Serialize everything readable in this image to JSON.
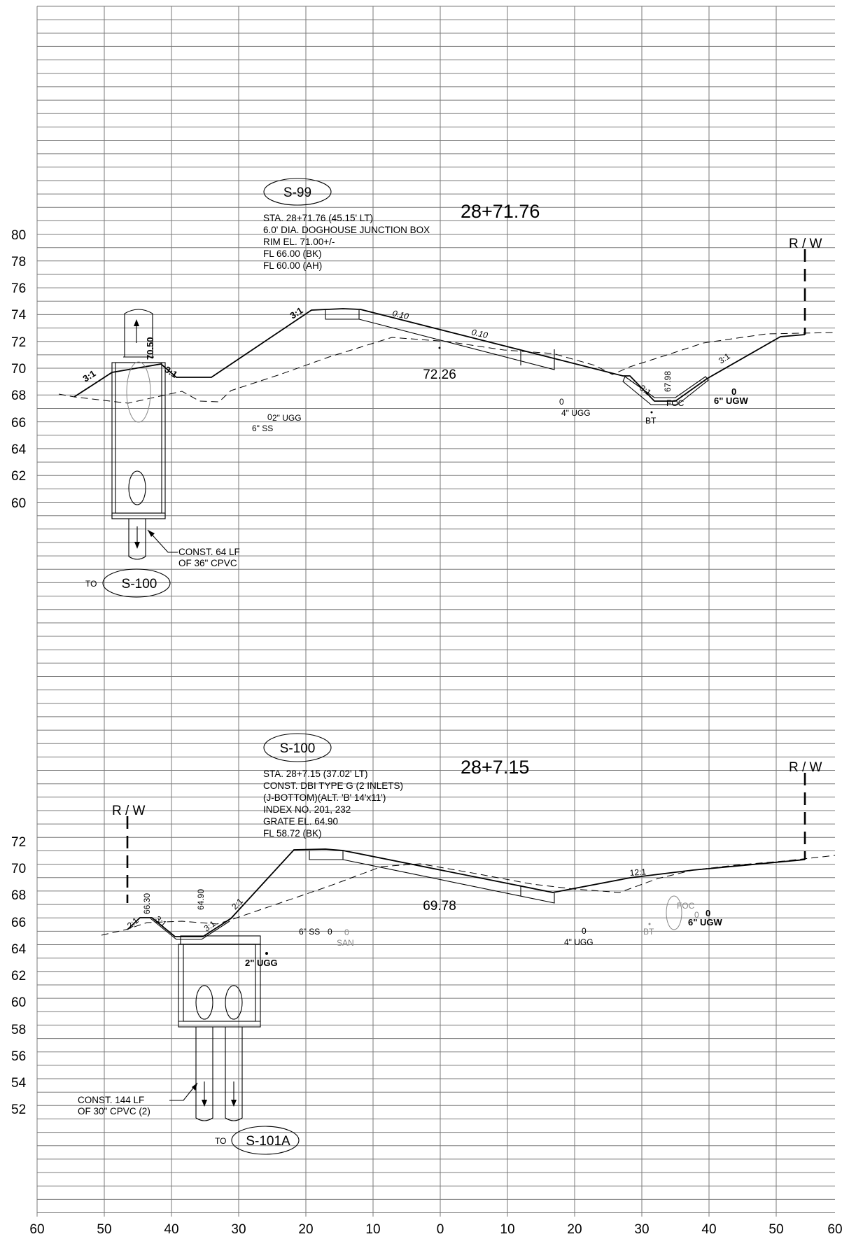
{
  "x_axis": {
    "labels": [
      "60",
      "50",
      "40",
      "30",
      "20",
      "10",
      "0",
      "10",
      "20",
      "30",
      "40",
      "50",
      "60"
    ]
  },
  "sections": [
    {
      "structure": "S-99",
      "station": "28+71.76",
      "notes": [
        "STA. 28+71.76 (45.15' LT)",
        "6.0' DIA. DOGHOUSE JUNCTION BOX",
        "RIM EL. 71.00+/-",
        "FL 66.00 (BK)",
        "FL 60.00 (AH)"
      ],
      "y_labels": [
        "80",
        "78",
        "76",
        "74",
        "72",
        "70",
        "68",
        "66",
        "64",
        "62",
        "60"
      ],
      "centerline_elev": "72.26",
      "row_label": "R / W",
      "slopes": [
        "3:1",
        "3:1",
        "3:1",
        "3:1",
        "3:1"
      ],
      "grades": [
        "0.10",
        "0.10"
      ],
      "elevations": [
        "70.50",
        "67.98"
      ],
      "utilities": [
        "2\" UGG",
        "6\" SS",
        "4\" UGG",
        "FOC",
        "BT",
        "6\" UGW"
      ],
      "pipe_marks": [
        "0",
        "0",
        "0"
      ],
      "pipe_note": [
        "CONST. 64 LF",
        "OF 36\" CPVC"
      ],
      "to_label": "TO",
      "to_structure": "S-100"
    },
    {
      "structure": "S-100",
      "station": "28+7.15",
      "notes": [
        "STA. 28+7.15 (37.02' LT)",
        "CONST. DBI TYPE G (2 INLETS)",
        "(J-BOTTOM)(ALT. 'B' 14'x11')",
        "INDEX NO. 201, 232",
        "GRATE EL. 64.90",
        "FL 58.72 (BK)"
      ],
      "y_labels": [
        "72",
        "70",
        "68",
        "66",
        "64",
        "62",
        "60",
        "58",
        "56",
        "54",
        "52"
      ],
      "centerline_elev": "69.78",
      "row_label_left": "R / W",
      "row_label_right": "R / W",
      "slopes": [
        "2:1",
        "3:1",
        "3:1",
        "2:1",
        "12:1"
      ],
      "elevations": [
        "66.30",
        "64.90"
      ],
      "utilities": [
        "6\" SS",
        "SAN",
        "2\" UGG",
        "4\" UGG",
        "BT",
        "FOC",
        "6\" UGW"
      ],
      "pipe_marks": [
        "0",
        "0",
        "0",
        "0",
        "0"
      ],
      "pipe_note": [
        "CONST. 144 LF",
        "OF 30\" CPVC (2)"
      ],
      "to_label": "TO",
      "to_structure": "S-101A"
    }
  ]
}
